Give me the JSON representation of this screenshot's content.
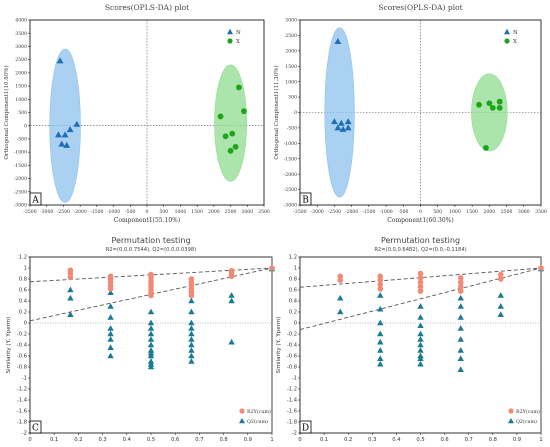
{
  "chart_data": [
    {
      "panel": "A",
      "type": "scatter",
      "title": "Scores(OPLS-DA) plot",
      "xlabel": "Component1(55.10%)",
      "ylabel": "Orthogonal Component1(10.80%)",
      "xlim": [
        -3500,
        3500
      ],
      "ylim": [
        -3000,
        4000
      ],
      "xticks": [
        -3500,
        -3000,
        -2500,
        -2000,
        -1500,
        -1000,
        -500,
        0,
        500,
        1000,
        1500,
        2000,
        2500,
        3000,
        3500
      ],
      "yticks": [
        -3000,
        -2500,
        -2000,
        -1500,
        -1000,
        -500,
        0,
        500,
        1000,
        1500,
        2000,
        2500,
        3000,
        3500,
        4000
      ],
      "legend": [
        "N",
        "X"
      ],
      "legend_position": "top-right",
      "series": [
        {
          "name": "N",
          "marker": "triangle",
          "color": "#1f6fb5",
          "points": [
            [
              -2600,
              2450
            ],
            [
              -2650,
              -350
            ],
            [
              -2450,
              -350
            ],
            [
              -2100,
              50
            ],
            [
              -2300,
              -150
            ],
            [
              -2550,
              -700
            ],
            [
              -2400,
              -750
            ]
          ],
          "ellipse": {
            "cx": -2450,
            "cy": 0,
            "rx": 460,
            "ry": 2900,
            "color": "#8fc1ee"
          }
        },
        {
          "name": "X",
          "marker": "circle",
          "color": "#1aa51a",
          "points": [
            [
              2750,
              1450
            ],
            [
              2900,
              550
            ],
            [
              2200,
              350
            ],
            [
              2350,
              -400
            ],
            [
              2550,
              -300
            ],
            [
              2650,
              -800
            ],
            [
              2500,
              -950
            ]
          ],
          "ellipse": {
            "cx": 2500,
            "cy": 100,
            "rx": 480,
            "ry": 2200,
            "color": "#8fdc8f"
          }
        }
      ]
    },
    {
      "panel": "B",
      "type": "scatter",
      "title": "Scores(OPLS-DA) plot",
      "xlabel": "Component1(60.30%)",
      "ylabel": "Orthogonal Component1(11.30%)",
      "xlim": [
        -3500,
        3500
      ],
      "ylim": [
        -3000,
        3000
      ],
      "xticks": [
        -3500,
        -3000,
        -2500,
        -2000,
        -1500,
        -1000,
        -500,
        0,
        500,
        1000,
        1500,
        2000,
        2500,
        3000,
        3500
      ],
      "yticks": [
        -3000,
        -2500,
        -2000,
        -1500,
        -1000,
        -500,
        0,
        500,
        1000,
        1500,
        2000,
        2500,
        3000
      ],
      "legend": [
        "N",
        "X"
      ],
      "legend_position": "top-right",
      "series": [
        {
          "name": "N",
          "marker": "triangle",
          "color": "#1f6fb5",
          "points": [
            [
              -2400,
              2300
            ],
            [
              -2500,
              -300
            ],
            [
              -2300,
              -350
            ],
            [
              -2100,
              -300
            ],
            [
              -2400,
              -500
            ],
            [
              -2250,
              -550
            ],
            [
              -2100,
              -500
            ]
          ],
          "ellipse": {
            "cx": -2350,
            "cy": 0,
            "rx": 430,
            "ry": 2750,
            "color": "#8fc1ee"
          }
        },
        {
          "name": "X",
          "marker": "circle",
          "color": "#1aa51a",
          "points": [
            [
              1700,
              250
            ],
            [
              2000,
              300
            ],
            [
              2300,
              350
            ],
            [
              2100,
              150
            ],
            [
              2300,
              150
            ],
            [
              1900,
              -1150
            ]
          ],
          "ellipse": {
            "cx": 2000,
            "cy": 0,
            "rx": 520,
            "ry": 1250,
            "color": "#8fdc8f"
          }
        }
      ]
    },
    {
      "panel": "C",
      "type": "scatter",
      "title": "Permutation testing",
      "subtitle": "R2=(0.0,0.7544), Q2=(0.0,0.0398)",
      "xlabel": "",
      "ylabel": "Similarity (Y, Yperm)",
      "xlim": [
        0,
        1
      ],
      "ylim": [
        -2,
        1.2
      ],
      "xticks": [
        0,
        0.1,
        0.2,
        0.3,
        0.4,
        0.5,
        0.6,
        0.7,
        0.8,
        0.9,
        1
      ],
      "yticks": [
        -2,
        -1.8,
        -1.6,
        -1.4,
        -1.2,
        -1,
        -0.8,
        -0.6,
        -0.4,
        -0.2,
        0,
        0.2,
        0.4,
        0.6,
        0.8,
        1,
        1.2
      ],
      "legend_position": "bottom-right",
      "series": [
        {
          "name": "R2Y(cum)",
          "marker": "circle",
          "color": "#f08a75",
          "x": [
            0.167,
            0.167,
            0.167,
            0.333,
            0.333,
            0.333,
            0.333,
            0.333,
            0.5,
            0.5,
            0.5,
            0.5,
            0.5,
            0.5,
            0.5,
            0.5,
            0.667,
            0.667,
            0.667,
            0.667,
            0.667,
            0.667,
            0.833,
            0.833,
            0.833,
            1
          ],
          "y": [
            0.96,
            0.9,
            0.83,
            0.85,
            0.8,
            0.75,
            0.68,
            0.62,
            0.88,
            0.82,
            0.76,
            0.7,
            0.65,
            0.6,
            0.55,
            0.5,
            0.8,
            0.74,
            0.68,
            0.62,
            0.56,
            0.5,
            0.95,
            0.9,
            0.85,
            1.0
          ]
        },
        {
          "name": "Q2(cum)",
          "marker": "triangle",
          "color": "#1a7a96",
          "x": [
            0.167,
            0.167,
            0.167,
            0.333,
            0.333,
            0.333,
            0.333,
            0.333,
            0.333,
            0.333,
            0.333,
            0.5,
            0.5,
            0.5,
            0.5,
            0.5,
            0.5,
            0.5,
            0.5,
            0.5,
            0.5,
            0.5,
            0.5,
            0.667,
            0.667,
            0.667,
            0.667,
            0.667,
            0.667,
            0.667,
            0.667,
            0.667,
            0.667,
            0.833,
            0.833,
            0.833,
            1
          ],
          "y": [
            0.6,
            0.45,
            0.15,
            0.55,
            0.3,
            0.1,
            -0.1,
            -0.2,
            -0.3,
            -0.45,
            -0.6,
            0.2,
            0.0,
            -0.1,
            -0.2,
            -0.3,
            -0.4,
            -0.5,
            -0.55,
            -0.6,
            -0.7,
            -0.75,
            -0.8,
            0.4,
            0.2,
            0.0,
            -0.1,
            -0.2,
            -0.3,
            -0.4,
            -0.5,
            -0.6,
            -0.7,
            0.5,
            0.4,
            -0.35,
            0.98
          ]
        }
      ],
      "lines": [
        {
          "from": [
            0,
            0.75
          ],
          "to": [
            1,
            1.0
          ],
          "style": "dashed"
        },
        {
          "from": [
            0,
            0.04
          ],
          "to": [
            1,
            1.0
          ],
          "style": "dashed"
        }
      ],
      "reference_lines": [
        {
          "y": 0
        },
        {
          "x": 1
        }
      ]
    },
    {
      "panel": "D",
      "type": "scatter",
      "title": "Permutation testing",
      "subtitle": "R2=(0.0,0.6482), Q2=(0.0,-0.1184)",
      "xlabel": "",
      "ylabel": "Similarity (Y, Yperm)",
      "xlim": [
        0,
        1
      ],
      "ylim": [
        -2,
        1.2
      ],
      "xticks": [
        0,
        0.1,
        0.2,
        0.3,
        0.4,
        0.5,
        0.6,
        0.7,
        0.8,
        0.9,
        1
      ],
      "yticks": [
        -2,
        -1.8,
        -1.6,
        -1.4,
        -1.2,
        -1,
        -0.8,
        -0.6,
        -0.4,
        -0.2,
        0,
        0.2,
        0.4,
        0.6,
        0.8,
        1,
        1.2
      ],
      "legend_position": "bottom-right",
      "series": [
        {
          "name": "R2Y(cum)",
          "marker": "circle",
          "color": "#f08a75",
          "x": [
            0.167,
            0.167,
            0.333,
            0.333,
            0.333,
            0.333,
            0.5,
            0.5,
            0.5,
            0.5,
            0.5,
            0.667,
            0.667,
            0.667,
            0.667,
            0.833,
            0.833,
            1
          ],
          "y": [
            0.85,
            0.78,
            0.85,
            0.78,
            0.7,
            0.62,
            0.9,
            0.82,
            0.74,
            0.66,
            0.58,
            0.82,
            0.74,
            0.66,
            0.58,
            0.88,
            0.8,
            1.0
          ]
        },
        {
          "name": "Q2(cum)",
          "marker": "triangle",
          "color": "#1a7a96",
          "x": [
            0.167,
            0.167,
            0.333,
            0.333,
            0.333,
            0.333,
            0.333,
            0.333,
            0.333,
            0.333,
            0.5,
            0.5,
            0.5,
            0.5,
            0.5,
            0.5,
            0.5,
            0.5,
            0.5,
            0.5,
            0.667,
            0.667,
            0.667,
            0.667,
            0.667,
            0.667,
            0.667,
            0.667,
            0.833,
            0.833,
            0.833,
            1
          ],
          "y": [
            0.2,
            0.45,
            0.5,
            0.25,
            0.0,
            -0.2,
            -0.35,
            -0.5,
            -0.65,
            -0.75,
            0.3,
            0.1,
            -0.05,
            -0.2,
            -0.3,
            -0.4,
            -0.5,
            -0.6,
            -0.65,
            -0.75,
            0.45,
            0.3,
            0.1,
            -0.1,
            -0.3,
            -0.5,
            -0.65,
            -0.85,
            0.5,
            0.3,
            0.15,
            0.98
          ]
        }
      ],
      "lines": [
        {
          "from": [
            0,
            0.65
          ],
          "to": [
            1,
            1.0
          ],
          "style": "dashed"
        },
        {
          "from": [
            0,
            -0.12
          ],
          "to": [
            1,
            1.0
          ],
          "style": "dashed"
        }
      ],
      "reference_lines": [
        {
          "y": 0
        },
        {
          "x": 1
        }
      ]
    }
  ]
}
